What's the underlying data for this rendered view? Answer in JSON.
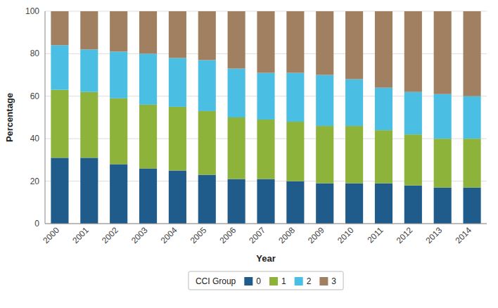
{
  "chart_data": {
    "type": "bar",
    "stacked": true,
    "xlabel": "Year",
    "ylabel": "Percentage",
    "legend_title": "CCI Group",
    "categories": [
      "2000",
      "2001",
      "2002",
      "2003",
      "2004",
      "2005",
      "2006",
      "2007",
      "2008",
      "2009",
      "2010",
      "2011",
      "2012",
      "2013",
      "2014"
    ],
    "series": [
      {
        "name": "0",
        "color": "#1f5c8b",
        "values": [
          31,
          31,
          28,
          26,
          25,
          23,
          21,
          21,
          20,
          19,
          19,
          19,
          18,
          17,
          17
        ]
      },
      {
        "name": "1",
        "color": "#8db33a",
        "values": [
          32,
          31,
          31,
          30,
          30,
          30,
          29,
          28,
          28,
          27,
          27,
          25,
          24,
          23,
          23
        ]
      },
      {
        "name": "2",
        "color": "#4bbee3",
        "values": [
          21,
          20,
          22,
          24,
          23,
          24,
          23,
          22,
          23,
          24,
          22,
          20,
          20,
          21,
          20
        ]
      },
      {
        "name": "3",
        "color": "#a08060",
        "values": [
          16,
          18,
          19,
          20,
          22,
          23,
          27,
          29,
          29,
          30,
          32,
          36,
          38,
          39,
          40
        ]
      }
    ],
    "ylim": [
      0,
      100
    ],
    "yticks": [
      0,
      20,
      40,
      60,
      80,
      100
    ],
    "grid": true,
    "legend": "bottom"
  }
}
